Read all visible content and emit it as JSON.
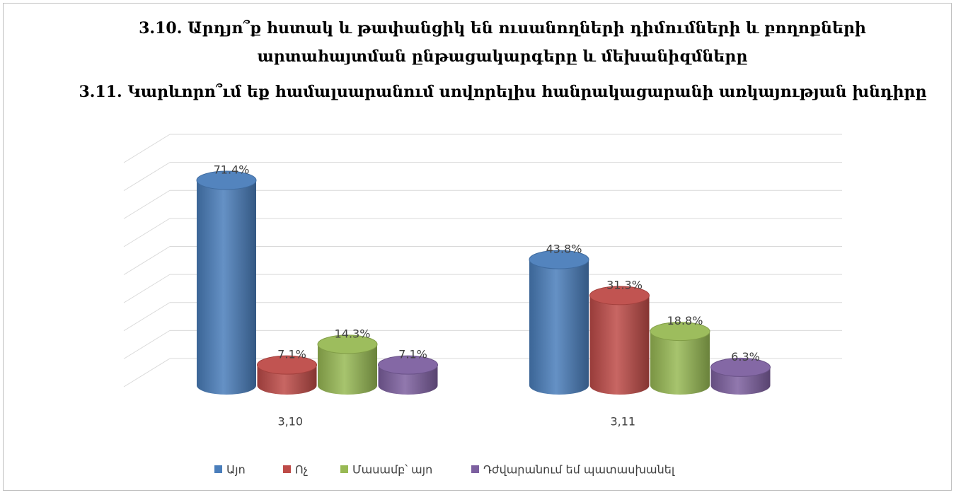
{
  "chart_data": {
    "type": "bar3d",
    "title": "3.10. Արդյո՞ք հստակ և թափանցիկ են ուսանողների դիմումների և բողոքների արտահայտման ընթացակարգերը և մեխանիզմները",
    "subtitle": "3.11. Կարևորո՞ւմ եք համալսարանում սովորելիս հանրակացարանի առկայության խնդիրը",
    "categories": [
      "3,10",
      "3,11"
    ],
    "series": [
      {
        "name": "Այո",
        "color": "#4a7ebb",
        "values": [
          71.4,
          43.8
        ],
        "value_labels": [
          "71.4%",
          "43.8%"
        ]
      },
      {
        "name": "Ոչ",
        "color": "#be4b48",
        "values": [
          7.1,
          31.3
        ],
        "value_labels": [
          "7.1%",
          "31.3%"
        ]
      },
      {
        "name": "Մասամբ՝ այո",
        "color": "#98b954",
        "values": [
          14.3,
          18.8
        ],
        "value_labels": [
          "14.3%",
          "18.8%"
        ]
      },
      {
        "name": "Դժվարանում եմ պատասխանել",
        "color": "#7d60a0",
        "values": [
          7.1,
          6.3
        ],
        "value_labels": [
          "7.1%",
          "6.3%"
        ]
      }
    ],
    "ylim": [
      0,
      80
    ],
    "yticks": [
      0,
      10,
      20,
      30,
      40,
      50,
      60,
      70,
      80
    ],
    "grid": true,
    "legend": "bottom"
  }
}
